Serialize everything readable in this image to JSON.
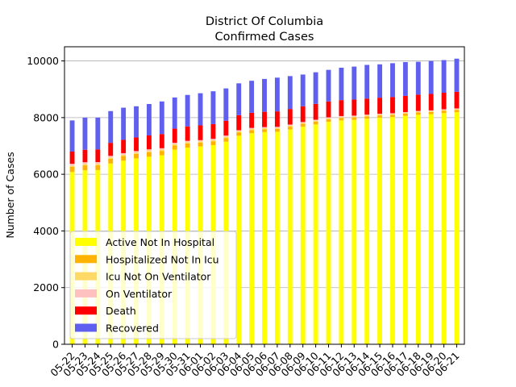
{
  "chart_data": {
    "type": "bar",
    "stacked": true,
    "title": "District Of Columbia",
    "subtitle": "Confirmed Cases",
    "xlabel": "",
    "ylabel": "Number of Cases",
    "ylim": [
      0,
      10500
    ],
    "yticks": [
      0,
      2000,
      4000,
      6000,
      8000,
      10000
    ],
    "grid": "horizontal",
    "legend_position": "lower-left",
    "categories": [
      "05-22",
      "05-23",
      "05-24",
      "05-25",
      "05-26",
      "05-27",
      "05-28",
      "05-29",
      "05-30",
      "05-31",
      "06-01",
      "06-02",
      "06-03",
      "06-04",
      "06-05",
      "06-06",
      "06-07",
      "06-08",
      "06-09",
      "06-10",
      "06-11",
      "06-12",
      "06-13",
      "06-14",
      "06-15",
      "06-16",
      "06-17",
      "06-18",
      "06-19",
      "06-20",
      "06-21"
    ],
    "series": [
      {
        "name": "Active Not In Hospital",
        "color": "#ffff00",
        "values": [
          6080,
          6140,
          6150,
          6380,
          6480,
          6560,
          6620,
          6670,
          6870,
          6940,
          6980,
          7030,
          7150,
          7360,
          7450,
          7490,
          7500,
          7580,
          7680,
          7760,
          7850,
          7900,
          7920,
          7960,
          8000,
          8020,
          8060,
          8100,
          8120,
          8160,
          8190
        ]
      },
      {
        "name": "Hospitalized Not In Icu",
        "color": "#ffb300",
        "values": [
          180,
          175,
          170,
          165,
          165,
          160,
          160,
          155,
          150,
          150,
          140,
          135,
          130,
          120,
          110,
          100,
          100,
          100,
          100,
          100,
          95,
          90,
          85,
          85,
          80,
          80,
          80,
          80,
          80,
          80,
          80
        ]
      },
      {
        "name": "Icu Not On Ventilator",
        "color": "#ffd966",
        "values": [
          50,
          50,
          50,
          50,
          45,
          45,
          45,
          45,
          40,
          40,
          40,
          40,
          40,
          35,
          35,
          35,
          35,
          35,
          30,
          30,
          30,
          30,
          30,
          30,
          25,
          25,
          25,
          25,
          25,
          25,
          25
        ]
      },
      {
        "name": "On Ventilator",
        "color": "#ffc0c0",
        "values": [
          60,
          60,
          60,
          55,
          55,
          55,
          55,
          50,
          50,
          50,
          45,
          45,
          45,
          40,
          40,
          40,
          40,
          40,
          35,
          35,
          35,
          35,
          35,
          30,
          30,
          30,
          30,
          30,
          30,
          30,
          30
        ]
      },
      {
        "name": "Death",
        "color": "#ff0000",
        "values": [
          430,
          440,
          450,
          460,
          470,
          480,
          490,
          500,
          500,
          510,
          520,
          520,
          525,
          530,
          535,
          540,
          545,
          550,
          555,
          560,
          560,
          562,
          565,
          566,
          568,
          570,
          572,
          575,
          580,
          583,
          585
        ]
      },
      {
        "name": "Recovered",
        "color": "#6060f0",
        "values": [
          1100,
          1135,
          1120,
          1120,
          1135,
          1100,
          1110,
          1150,
          1100,
          1110,
          1135,
          1160,
          1140,
          1125,
          1130,
          1160,
          1190,
          1160,
          1120,
          1115,
          1115,
          1143,
          1165,
          1189,
          1177,
          1195,
          1193,
          1160,
          1165,
          1152,
          1170
        ]
      }
    ]
  }
}
